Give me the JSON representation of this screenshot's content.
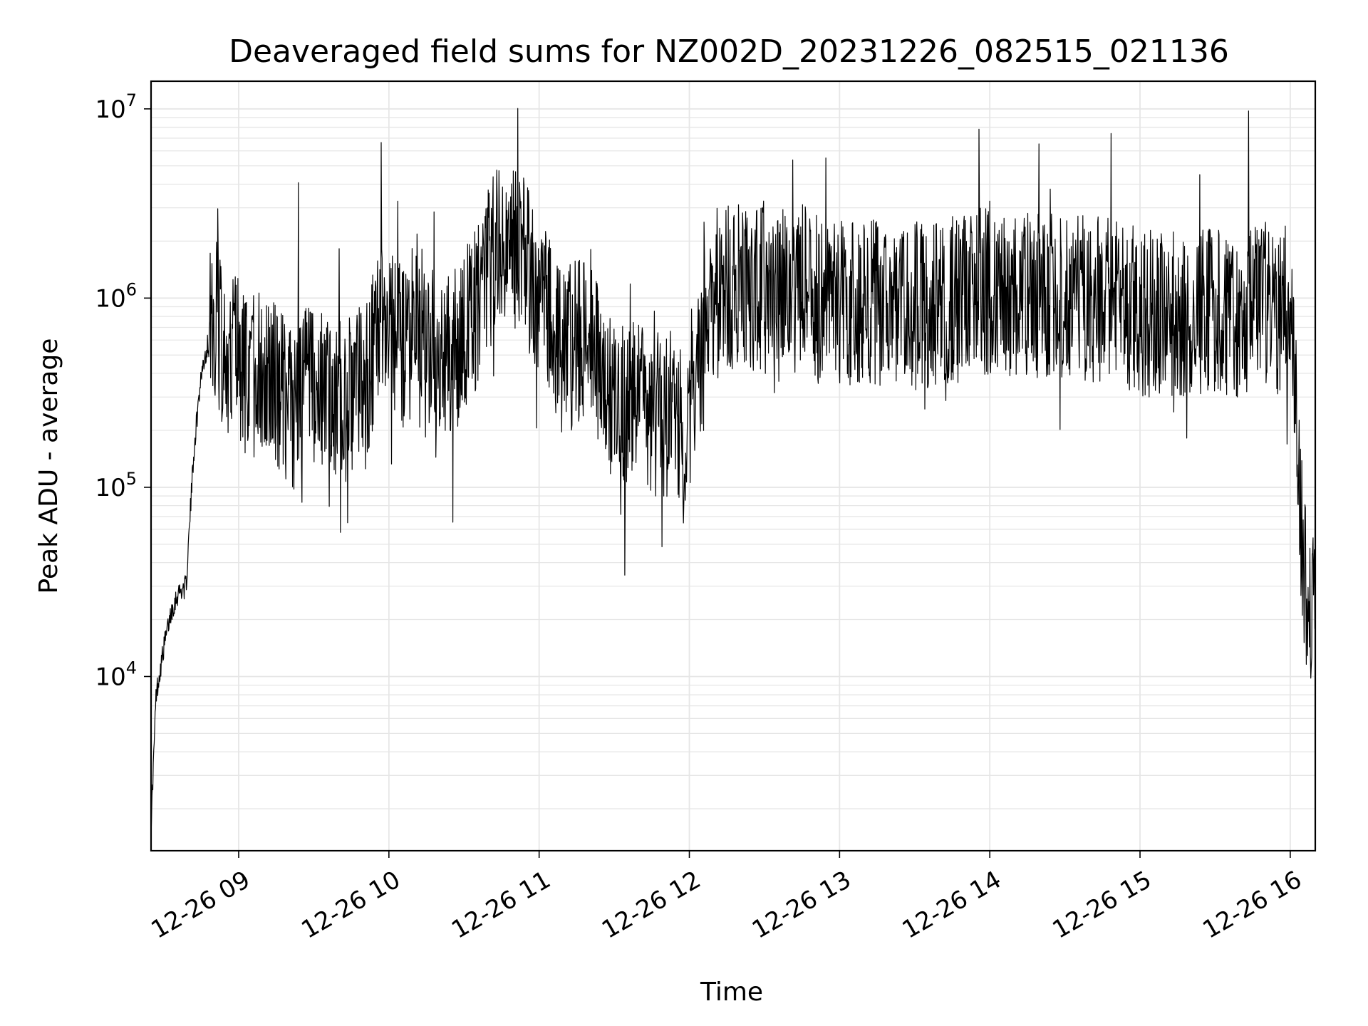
{
  "chart_data": {
    "type": "line",
    "title": "Deaveraged field sums for NZ002D_20231226_082515_021136",
    "xlabel": "Time",
    "ylabel": "Peak ADU - average",
    "yscale": "log",
    "ylim": [
      1200,
      14000000
    ],
    "xlim": [
      "2023-12-26 08:25",
      "2023-12-26 16:10"
    ],
    "grid": true,
    "x_ticks": [
      "12-26 09",
      "12-26 10",
      "12-26 11",
      "12-26 12",
      "12-26 13",
      "12-26 14",
      "12-26 15",
      "12-26 16"
    ],
    "y_ticks": [
      {
        "base": "10",
        "exp": "4",
        "value": 10000
      },
      {
        "base": "10",
        "exp": "5",
        "value": 100000
      },
      {
        "base": "10",
        "exp": "6",
        "value": 1000000
      },
      {
        "base": "10",
        "exp": "7",
        "value": 10000000
      }
    ],
    "line_color": "#000000",
    "series": [
      {
        "x": [
          "2023-12-26 08:25",
          "2023-12-26 08:27",
          "2023-12-26 08:30",
          "2023-12-26 08:33",
          "2023-12-26 08:36",
          "2023-12-26 08:39",
          "2023-12-26 08:42",
          "2023-12-26 08:45",
          "2023-12-26 08:48",
          "2023-12-26 08:51",
          "2023-12-26 08:55",
          "2023-12-26 09:00",
          "2023-12-26 09:05",
          "2023-12-26 09:10",
          "2023-12-26 09:15",
          "2023-12-26 09:20",
          "2023-12-26 09:25",
          "2023-12-26 09:30",
          "2023-12-26 09:35",
          "2023-12-26 09:40",
          "2023-12-26 09:45",
          "2023-12-26 09:50",
          "2023-12-26 09:55",
          "2023-12-26 10:00",
          "2023-12-26 10:05",
          "2023-12-26 10:10",
          "2023-12-26 10:15",
          "2023-12-26 10:20",
          "2023-12-26 10:25",
          "2023-12-26 10:30",
          "2023-12-26 10:35",
          "2023-12-26 10:40",
          "2023-12-26 10:45",
          "2023-12-26 10:50",
          "2023-12-26 10:55",
          "2023-12-26 11:00",
          "2023-12-26 11:05",
          "2023-12-26 11:10",
          "2023-12-26 11:15",
          "2023-12-26 11:20",
          "2023-12-26 11:25",
          "2023-12-26 11:30",
          "2023-12-26 11:35",
          "2023-12-26 11:40",
          "2023-12-26 11:45",
          "2023-12-26 11:50",
          "2023-12-26 11:55",
          "2023-12-26 12:00",
          "2023-12-26 12:05",
          "2023-12-26 12:10",
          "2023-12-26 12:15",
          "2023-12-26 12:20",
          "2023-12-26 12:25",
          "2023-12-26 12:30",
          "2023-12-26 12:35",
          "2023-12-26 12:40",
          "2023-12-26 12:45",
          "2023-12-26 12:50",
          "2023-12-26 12:55",
          "2023-12-26 13:00",
          "2023-12-26 13:10",
          "2023-12-26 13:20",
          "2023-12-26 13:30",
          "2023-12-26 13:40",
          "2023-12-26 13:50",
          "2023-12-26 14:00",
          "2023-12-26 14:10",
          "2023-12-26 14:20",
          "2023-12-26 14:30",
          "2023-12-26 14:40",
          "2023-12-26 14:50",
          "2023-12-26 15:00",
          "2023-12-26 15:10",
          "2023-12-26 15:20",
          "2023-12-26 15:30",
          "2023-12-26 15:40",
          "2023-12-26 15:45",
          "2023-12-26 15:50",
          "2023-12-26 15:55",
          "2023-12-26 15:58",
          "2023-12-26 16:00",
          "2023-12-26 16:02",
          "2023-12-26 16:04",
          "2023-12-26 16:06",
          "2023-12-26 16:08",
          "2023-12-26 16:10"
        ],
        "values": [
          1600,
          8000,
          14000,
          22000,
          28000,
          30000,
          150000,
          400000,
          600000,
          800000,
          500000,
          450000,
          380000,
          400000,
          350000,
          250000,
          300000,
          350000,
          300000,
          280000,
          300000,
          350000,
          600000,
          700000,
          550000,
          650000,
          500000,
          400000,
          500000,
          700000,
          900000,
          1500000,
          2000000,
          1800000,
          1500000,
          1000000,
          700000,
          500000,
          600000,
          700000,
          400000,
          300000,
          250000,
          300000,
          250000,
          250000,
          250000,
          220000,
          500000,
          1000000,
          1200000,
          1100000,
          1000000,
          1200000,
          1000000,
          1100000,
          1200000,
          1000000,
          900000,
          1000000,
          900000,
          1000000,
          900000,
          950000,
          1000000,
          1100000,
          1000000,
          1000000,
          1000000,
          1000000,
          1000000,
          850000,
          800000,
          800000,
          850000,
          800000,
          850000,
          900000,
          850000,
          900000,
          700000,
          300000,
          80000,
          30000,
          20000,
          30000
        ]
      }
    ]
  }
}
